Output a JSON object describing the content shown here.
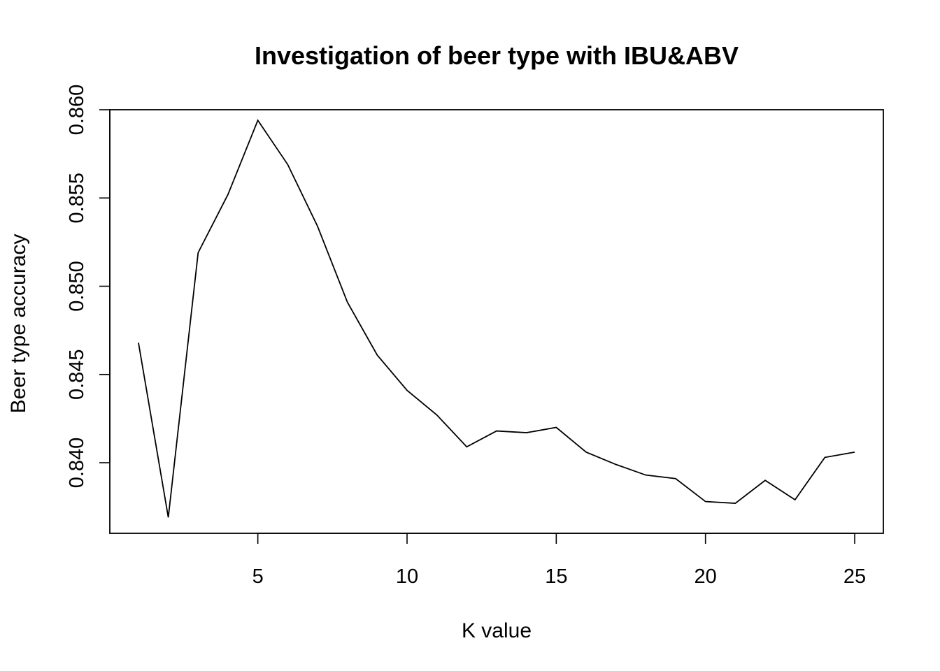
{
  "chart_data": {
    "type": "line",
    "title": "Investigation of beer type with IBU&ABV",
    "xlabel": "K value",
    "ylabel": "Beer type accuracy",
    "x": [
      1,
      2,
      3,
      4,
      5,
      6,
      7,
      8,
      9,
      10,
      11,
      12,
      13,
      14,
      15,
      16,
      17,
      18,
      19,
      20,
      21,
      22,
      23,
      24,
      25
    ],
    "series": [
      {
        "values": [
          0.8468,
          0.8369,
          0.8519,
          0.8552,
          0.8594,
          0.8569,
          0.8534,
          0.8491,
          0.8461,
          0.8441,
          0.8427,
          0.8409,
          0.8418,
          0.8417,
          0.842,
          0.8406,
          0.8399,
          0.8393,
          0.8391,
          0.8378,
          0.8377,
          0.839,
          0.8379,
          0.8403,
          0.8406
        ]
      }
    ],
    "xticks": [
      {
        "value": 5,
        "label": "5"
      },
      {
        "value": 10,
        "label": "10"
      },
      {
        "value": 15,
        "label": "15"
      },
      {
        "value": 20,
        "label": "20"
      },
      {
        "value": 25,
        "label": "25"
      }
    ],
    "yticks": [
      {
        "value": 0.84,
        "label": "0.840"
      },
      {
        "value": 0.845,
        "label": "0.845"
      },
      {
        "value": 0.85,
        "label": "0.850"
      },
      {
        "value": 0.855,
        "label": "0.855"
      },
      {
        "value": 0.86,
        "label": "0.860"
      }
    ],
    "xlim": [
      0.04,
      25.96
    ],
    "ylim": [
      0.836,
      0.86
    ],
    "grid": false,
    "legend": "none",
    "colors": {
      "line": "#000000",
      "background": "#ffffff"
    }
  }
}
